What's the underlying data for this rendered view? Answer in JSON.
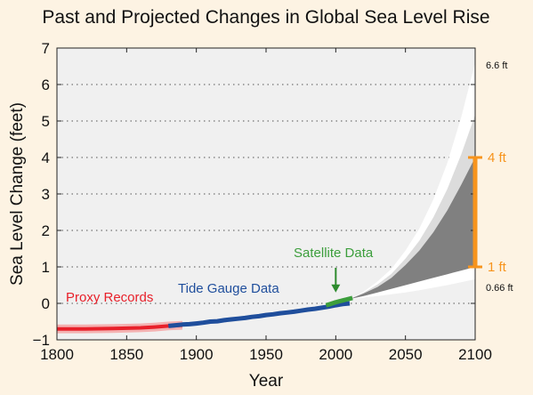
{
  "chart_data": {
    "type": "line",
    "title": "Past and Projected Changes in Global Sea Level Rise",
    "xlabel": "Year",
    "ylabel": "Sea Level Change (feet)",
    "xlim": [
      1800,
      2100
    ],
    "ylim": [
      -1,
      7
    ],
    "xticks": [
      1800,
      1850,
      1900,
      1950,
      2000,
      2050,
      2100
    ],
    "yticks": [
      -1,
      0,
      1,
      2,
      3,
      4,
      5,
      6,
      7
    ],
    "grid": "horizontal-dotted",
    "series": [
      {
        "name": "Proxy Records",
        "color": "#e8202a",
        "band_color": "#f4a6a6",
        "x": [
          1800,
          1820,
          1840,
          1860,
          1870,
          1880,
          1890
        ],
        "y": [
          -0.7,
          -0.7,
          -0.69,
          -0.67,
          -0.65,
          -0.62,
          -0.6
        ],
        "band_lower": [
          -0.82,
          -0.82,
          -0.81,
          -0.79,
          -0.77,
          -0.74,
          -0.72
        ],
        "band_upper": [
          -0.58,
          -0.58,
          -0.57,
          -0.55,
          -0.53,
          -0.5,
          -0.48
        ]
      },
      {
        "name": "Tide Gauge Data",
        "color": "#1f4e9c",
        "x": [
          1880,
          1885,
          1890,
          1895,
          1900,
          1905,
          1910,
          1915,
          1920,
          1925,
          1930,
          1935,
          1940,
          1945,
          1950,
          1955,
          1960,
          1965,
          1970,
          1975,
          1980,
          1985,
          1990,
          1995,
          2000,
          2005,
          2010
        ],
        "y": [
          -0.62,
          -0.6,
          -0.58,
          -0.57,
          -0.55,
          -0.53,
          -0.5,
          -0.49,
          -0.46,
          -0.44,
          -0.42,
          -0.4,
          -0.37,
          -0.35,
          -0.32,
          -0.3,
          -0.27,
          -0.25,
          -0.23,
          -0.2,
          -0.17,
          -0.15,
          -0.12,
          -0.09,
          -0.05,
          -0.02,
          0.0
        ]
      },
      {
        "name": "Satellite Data",
        "color": "#3c9e3c",
        "x": [
          1993,
          1996,
          1999,
          2002,
          2005,
          2008,
          2012
        ],
        "y": [
          -0.05,
          -0.02,
          0.02,
          0.05,
          0.08,
          0.11,
          0.15
        ]
      }
    ],
    "projection": {
      "x": [
        2010,
        2020,
        2030,
        2040,
        2050,
        2060,
        2070,
        2080,
        2090,
        2100
      ],
      "outer_upper": [
        0.12,
        0.32,
        0.6,
        0.95,
        1.45,
        2.05,
        2.85,
        3.85,
        5.1,
        6.6
      ],
      "inner_upper": [
        0.12,
        0.27,
        0.45,
        0.7,
        1.05,
        1.45,
        1.95,
        2.55,
        3.25,
        4.0
      ],
      "inner_lower": [
        0.12,
        0.2,
        0.3,
        0.4,
        0.5,
        0.6,
        0.7,
        0.8,
        0.9,
        1.0
      ],
      "outer_lower": [
        0.12,
        0.16,
        0.2,
        0.25,
        0.3,
        0.36,
        0.43,
        0.5,
        0.58,
        0.66
      ]
    },
    "annotations": {
      "proxy_label": "Proxy Records",
      "tide_label": "Tide Gauge Data",
      "satellite_label": "Satellite Data",
      "high_label": "6.6 ft",
      "low_label": "0.66 ft",
      "range_high_label": "4 ft",
      "range_low_label": "1 ft",
      "range_high_value": 4,
      "range_low_value": 1,
      "range_color": "#f7941d"
    }
  }
}
